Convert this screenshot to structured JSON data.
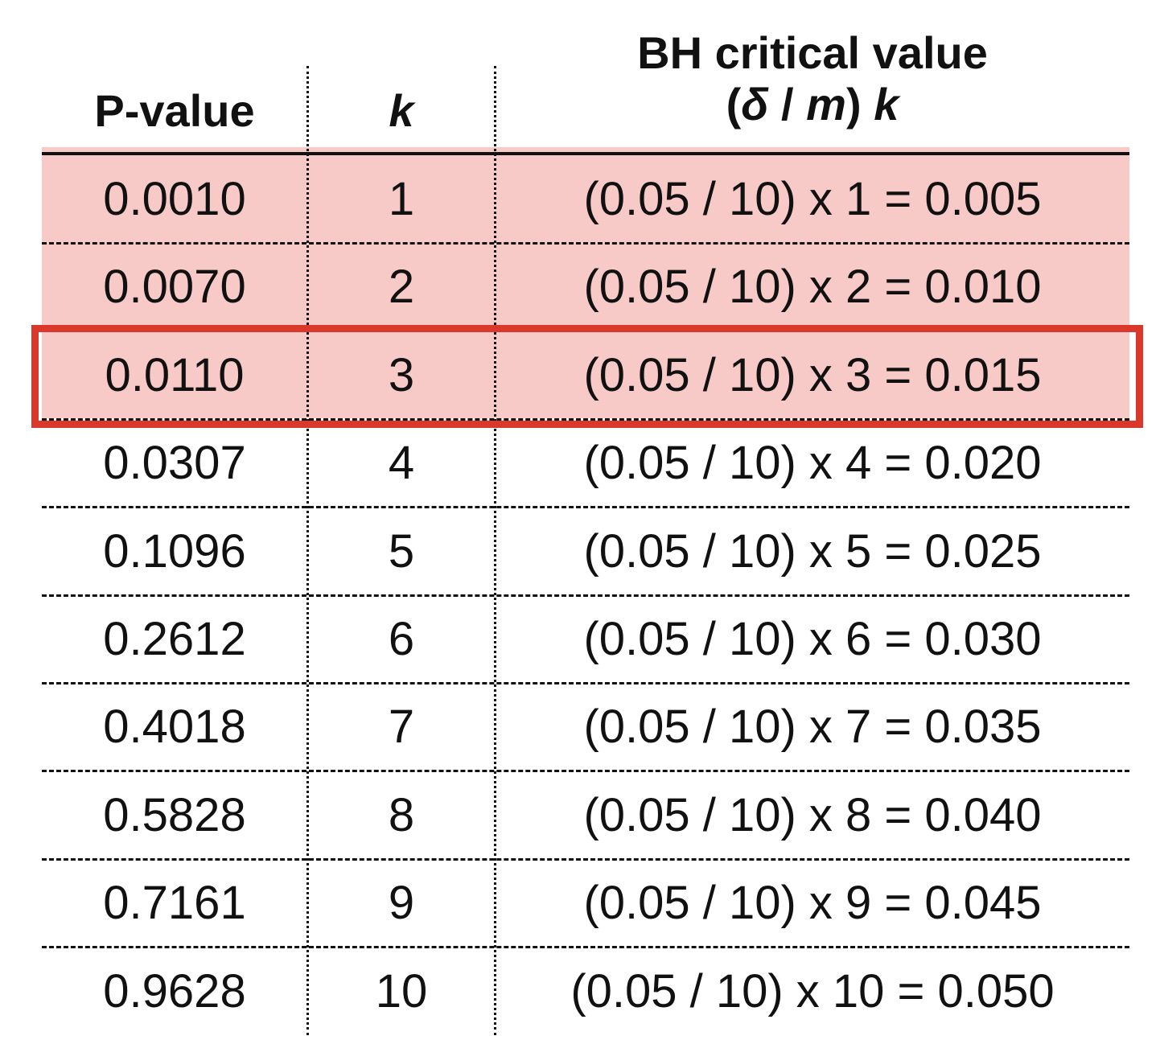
{
  "table": {
    "headers": {
      "pvalue": "P-value",
      "k": "k",
      "bh_line1": "BH critical value",
      "bh_line2_open": "(",
      "bh_line2_delta": "δ",
      "bh_line2_slash": " / ",
      "bh_line2_m": "m",
      "bh_line2_close": ") ",
      "bh_line2_k": "k"
    },
    "rows": [
      {
        "pvalue": "0.0010",
        "k": "1",
        "bh": "(0.05 / 10) x 1 = 0.005"
      },
      {
        "pvalue": "0.0070",
        "k": "2",
        "bh": "(0.05 / 10) x 2 = 0.010"
      },
      {
        "pvalue": "0.0110",
        "k": "3",
        "bh": "(0.05 / 10) x 3 = 0.015"
      },
      {
        "pvalue": "0.0307",
        "k": "4",
        "bh": "(0.05 / 10) x 4 = 0.020"
      },
      {
        "pvalue": "0.1096",
        "k": "5",
        "bh": "(0.05 / 10) x 5 = 0.025"
      },
      {
        "pvalue": "0.2612",
        "k": "6",
        "bh": "(0.05 / 10) x 6 = 0.030"
      },
      {
        "pvalue": "0.4018",
        "k": "7",
        "bh": "(0.05 / 10) x 7 = 0.035"
      },
      {
        "pvalue": "0.5828",
        "k": "8",
        "bh": "(0.05 / 10) x 8 = 0.040"
      },
      {
        "pvalue": "0.7161",
        "k": "9",
        "bh": "(0.05 / 10) x 9 = 0.045"
      },
      {
        "pvalue": "0.9628",
        "k": "10",
        "bh": "(0.05 / 10) x 10 = 0.050"
      }
    ],
    "shaded_rows": [
      1,
      2,
      3
    ],
    "highlighted_row": 3
  },
  "colors": {
    "shade": "#f7cac7",
    "highlight": "#d9382a",
    "text": "#111111"
  },
  "chart_data": {
    "type": "table",
    "title": "",
    "columns": [
      "P-value",
      "k",
      "BH critical value (δ / m) k"
    ],
    "delta": 0.05,
    "m": 10,
    "pvalues": [
      0.001,
      0.007,
      0.011,
      0.0307,
      0.1096,
      0.2612,
      0.4018,
      0.5828,
      0.7161,
      0.9628
    ],
    "k": [
      1,
      2,
      3,
      4,
      5,
      6,
      7,
      8,
      9,
      10
    ],
    "critical_values": [
      0.005,
      0.01,
      0.015,
      0.02,
      0.025,
      0.03,
      0.035,
      0.04,
      0.045,
      0.05
    ],
    "significant_rows_k": [
      1,
      2,
      3
    ],
    "largest_significant_k": 3
  }
}
